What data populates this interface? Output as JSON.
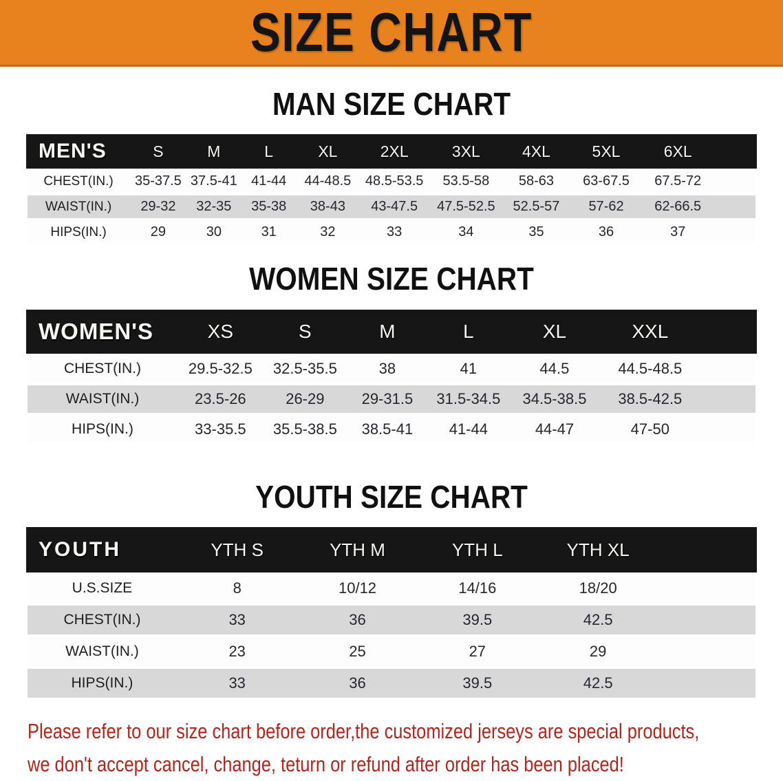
{
  "banner": {
    "title": "SIZE CHART",
    "bg_color": "#E8821E",
    "text_color": "#141414"
  },
  "sections": [
    {
      "id": "men",
      "title": "MAN SIZE CHART",
      "table": {
        "header_label": "MEN'S",
        "sizes": [
          "S",
          "M",
          "L",
          "XL",
          "2XL",
          "3XL",
          "4XL",
          "5XL",
          "6XL"
        ],
        "rows": [
          {
            "label": "CHEST(IN.)",
            "values": [
              "35-37.5",
              "37.5-41",
              "41-44",
              "44-48.5",
              "48.5-53.5",
              "53.5-58",
              "58-63",
              "63-67.5",
              "67.5-72"
            ]
          },
          {
            "label": "WAIST(IN.)",
            "values": [
              "29-32",
              "32-35",
              "35-38",
              "38-43",
              "43-47.5",
              "47.5-52.5",
              "52.5-57",
              "57-62",
              "62-66.5"
            ]
          },
          {
            "label": "HIPS(IN.)",
            "values": [
              "29",
              "30",
              "31",
              "32",
              "33",
              "34",
              "35",
              "36",
              "37"
            ]
          }
        ]
      }
    },
    {
      "id": "women",
      "title": "WOMEN SIZE CHART",
      "table": {
        "header_label": "WOMEN'S",
        "sizes": [
          "XS",
          "S",
          "M",
          "L",
          "XL",
          "XXL"
        ],
        "rows": [
          {
            "label": "CHEST(IN.)",
            "values": [
              "29.5-32.5",
              "32.5-35.5",
              "38",
              "41",
              "44.5",
              "44.5-48.5"
            ]
          },
          {
            "label": "WAIST(IN.)",
            "values": [
              "23.5-26",
              "26-29",
              "29-31.5",
              "31.5-34.5",
              "34.5-38.5",
              "38.5-42.5"
            ]
          },
          {
            "label": "HIPS(IN.)",
            "values": [
              "33-35.5",
              "35.5-38.5",
              "38.5-41",
              "41-44",
              "44-47",
              "47-50"
            ]
          }
        ]
      }
    },
    {
      "id": "youth",
      "title": "YOUTH SIZE CHART",
      "table": {
        "header_label": "YOUTH",
        "sizes": [
          "YTH S",
          "YTH M",
          "YTH L",
          "YTH XL"
        ],
        "rows": [
          {
            "label": "U.S.SIZE",
            "values": [
              "8",
              "10/12",
              "14/16",
              "18/20"
            ]
          },
          {
            "label": "CHEST(IN.)",
            "values": [
              "33",
              "36",
              "39.5",
              "42.5"
            ]
          },
          {
            "label": "WAIST(IN.)",
            "values": [
              "23",
              "25",
              "27",
              "29"
            ]
          },
          {
            "label": "HIPS(IN.)",
            "values": [
              "33",
              "36",
              "39.5",
              "42.5"
            ]
          }
        ]
      }
    }
  ],
  "disclaimer": {
    "line1": "Please refer to our size chart before order,the customized jerseys are special products,",
    "line2": "we don't accept cancel, change, teturn or refund after order has been placed!",
    "color": "#B2241C"
  },
  "colors": {
    "banner_orange": "#E8821E",
    "banner_border": "#C96A12",
    "table_header_bg": "#161616",
    "table_header_text": "#F6F6F2",
    "row_gray": "#D8D8D8",
    "row_white": "#FDFDFD",
    "value_text": "#262630",
    "title_text": "#101010"
  }
}
